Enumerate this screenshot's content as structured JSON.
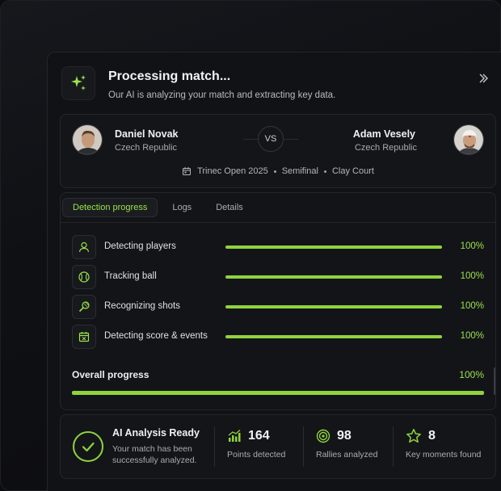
{
  "header": {
    "title": "Processing match...",
    "subtitle": "Our AI is analyzing your match and extracting key data.",
    "sparkle_icon": "sparkle-icon",
    "collapse_icon": "double-chevron-right-icon"
  },
  "match": {
    "player1": {
      "name": "Daniel Novak",
      "country": "Czech Republic"
    },
    "player2": {
      "name": "Adam Vesely",
      "country": "Czech Republic"
    },
    "vs_label": "VS",
    "tournament": "Trinec Open 2025",
    "round": "Semifinal",
    "surface": "Clay Court"
  },
  "tabs": [
    {
      "label": "Detection progress",
      "active": true
    },
    {
      "label": "Logs",
      "active": false
    },
    {
      "label": "Details",
      "active": false
    }
  ],
  "steps": [
    {
      "label": "Detecting players",
      "progress": 100,
      "pct_text": "100%",
      "icon": "user-icon"
    },
    {
      "label": "Tracking ball",
      "progress": 100,
      "pct_text": "100%",
      "icon": "tennis-ball-icon"
    },
    {
      "label": "Recognizing shots",
      "progress": 100,
      "pct_text": "100%",
      "icon": "racket-icon"
    },
    {
      "label": "Detecting score & events",
      "progress": 100,
      "pct_text": "100%",
      "icon": "calendar-check-icon"
    }
  ],
  "overall": {
    "label": "Overall progress",
    "progress": 100,
    "pct_text": "100%"
  },
  "status": {
    "title": "AI Analysis Ready",
    "subtitle": "Your match has been successfully analyzed."
  },
  "stats": [
    {
      "value": "164",
      "label": "Points detected",
      "icon": "bar-chart-icon"
    },
    {
      "value": "98",
      "label": "Rallies analyzed",
      "icon": "target-icon"
    },
    {
      "value": "8",
      "label": "Key moments found",
      "icon": "star-icon"
    }
  ],
  "colors": {
    "accent": "#8fd43c",
    "accent_text": "#9be34a",
    "background": "#0b0c0f",
    "panel": "#111216"
  }
}
